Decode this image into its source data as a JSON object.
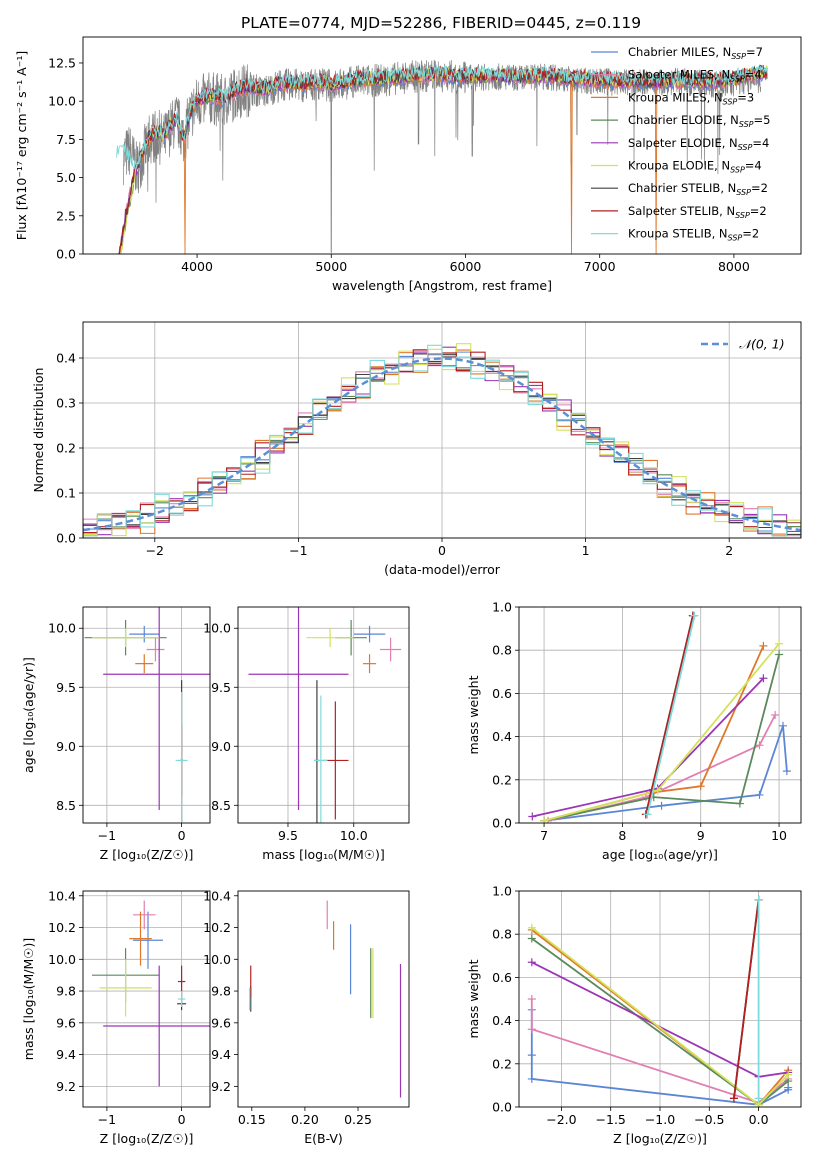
{
  "figure_title": "PLATE=0774, MJD=52286, FIBERID=0445, z=0.119",
  "models": [
    {
      "label": "Chabrier MILES, N",
      "sub": "SSP",
      "nssp": "=7",
      "color": "#5b86d6"
    },
    {
      "label": "Salpeter MILES, N",
      "sub": "SSP",
      "nssp": "=4",
      "color": "#e27fb2"
    },
    {
      "label": "Kroupa MILES, N",
      "sub": "SSP",
      "nssp": "=3",
      "color": "#e0782b"
    },
    {
      "label": "Chabrier ELODIE, N",
      "sub": "SSP",
      "nssp": "=5",
      "color": "#5a8a5a"
    },
    {
      "label": "Salpeter ELODIE, N",
      "sub": "SSP",
      "nssp": "=4",
      "color": "#9b36b4"
    },
    {
      "label": "Kroupa ELODIE, N",
      "sub": "SSP",
      "nssp": "=4",
      "color": "#d3e25a"
    },
    {
      "label": "Chabrier STELIB, N",
      "sub": "SSP",
      "nssp": "=2",
      "color": "#404040"
    },
    {
      "label": "Salpeter STELIB, N",
      "sub": "SSP",
      "nssp": "=2",
      "color": "#b02222"
    },
    {
      "label": "Kroupa STELIB, N",
      "sub": "SSP",
      "nssp": "=2",
      "color": "#7fdbdb"
    }
  ],
  "chart_data": [
    {
      "id": "spectrum",
      "type": "line",
      "xlabel": "wavelength [Angstrom, rest frame]",
      "ylabel": "Flux [fλ10⁻¹⁷ erg cm⁻² s⁻¹ A⁻¹]",
      "xlim": [
        3150,
        8500
      ],
      "ylim": [
        0,
        14.2
      ],
      "xticks": [
        4000,
        5000,
        6000,
        7000,
        8000
      ],
      "yticks": [
        0.0,
        2.5,
        5.0,
        7.5,
        10.0,
        12.5
      ],
      "data_color": "#808080",
      "series": [
        {
          "name": "data",
          "x": [
            3450,
            3500,
            3550,
            3600,
            3650,
            3700,
            3750,
            3800,
            3850,
            3900,
            3950,
            4000,
            4100,
            4200,
            4300,
            4400,
            4500,
            4600,
            4700,
            4800,
            4900,
            5000,
            5200,
            5400,
            5600,
            5800,
            6000,
            6200,
            6400,
            6600,
            6800,
            7000,
            7200,
            7400,
            7600,
            7800,
            8000,
            8200
          ],
          "y": [
            6.3,
            6.8,
            5.5,
            6.5,
            7.6,
            7.8,
            7.4,
            8.2,
            8.8,
            7.6,
            9.1,
            9.9,
            10.2,
            10.0,
            10.6,
            10.8,
            10.6,
            11.0,
            11.1,
            11.0,
            11.2,
            11.0,
            11.3,
            11.4,
            11.6,
            11.7,
            11.5,
            11.6,
            11.5,
            11.6,
            11.4,
            11.3,
            11.2,
            11.2,
            11.3,
            11.1,
            11.2,
            11.4
          ]
        },
        {
          "name": "model",
          "x": [
            3400,
            3450,
            3500,
            3550,
            3600,
            3650,
            3700,
            3750,
            3800,
            3850,
            3900,
            3950,
            4000,
            4100,
            4200,
            4300,
            4400,
            4500,
            4600,
            4700,
            4800,
            4900,
            5000,
            5200,
            5400,
            5600,
            5800,
            6000,
            6200,
            6400,
            6600,
            6800,
            7000,
            7200,
            7400,
            7600,
            7800,
            8000,
            8250
          ],
          "y": [
            6.6,
            6.9,
            6.2,
            5.5,
            6.8,
            7.7,
            8.0,
            7.8,
            8.4,
            8.9,
            7.5,
            9.3,
            10.1,
            10.4,
            10.2,
            10.8,
            11.0,
            10.8,
            11.1,
            11.2,
            11.1,
            11.3,
            11.1,
            11.4,
            11.5,
            11.7,
            11.8,
            11.6,
            11.7,
            11.6,
            11.7,
            11.5,
            11.4,
            11.3,
            11.3,
            11.4,
            11.3,
            11.5,
            11.9
          ]
        }
      ],
      "legend": "upper right"
    },
    {
      "id": "residuals",
      "type": "histogram",
      "xlabel": "(data-model)/error",
      "ylabel": "Normed distribution",
      "xlim": [
        -2.5,
        2.5
      ],
      "ylim": [
        0,
        0.48
      ],
      "xticks": [
        -2,
        -1,
        0,
        1,
        2
      ],
      "yticks": [
        0.0,
        0.1,
        0.2,
        0.3,
        0.4
      ],
      "grid": true,
      "legend": "upper right",
      "reference_curve": {
        "name": "𝒩(0, 1)",
        "color": "#5b8fd6",
        "mu": 0,
        "sigma": 1,
        "dashed": true
      },
      "bin_width": 0.1,
      "bins_from": -2.5,
      "jitter": [
        0.0,
        0.022,
        -0.018,
        0.03,
        -0.025,
        0.012,
        -0.03,
        0.026,
        -0.008,
        0.019,
        -0.022,
        0.034,
        -0.015,
        0.005,
        -0.028,
        0.024,
        -0.01,
        0.016,
        -0.035,
        0.02,
        0.009,
        -0.019,
        0.028,
        -0.012,
        0.015,
        -0.026,
        0.031,
        -0.006,
        0.013,
        -0.021,
        0.027,
        -0.016,
        0.007,
        -0.029,
        0.018,
        -0.011,
        0.023,
        -0.024,
        0.01,
        -0.014,
        0.021,
        -0.02,
        0.014,
        -0.007,
        0.025,
        -0.017,
        0.006,
        -0.027,
        0.017,
        -0.009
      ]
    },
    {
      "id": "age_vs_Z",
      "type": "errorbar",
      "xlabel": "Z [log₁₀(Z/Z☉)]",
      "ylabel": "age  [log₁₀(age/yr)]",
      "xlim": [
        -1.32,
        0.38
      ],
      "ylim": [
        8.35,
        10.18
      ],
      "xticks": [
        -1,
        0
      ],
      "yticks": [
        8.5,
        9.0,
        9.5,
        10.0
      ],
      "grid": true,
      "points": [
        {
          "model": 0,
          "x": -0.5,
          "y": 9.95,
          "xerr": 0.2,
          "yerr": 0.07
        },
        {
          "model": 1,
          "x": -0.35,
          "y": 9.82,
          "xerr": 0.12,
          "yerr": 0.1
        },
        {
          "model": 2,
          "x": -0.5,
          "y": 9.7,
          "xerr": 0.12,
          "yerr": 0.08
        },
        {
          "model": 3,
          "x": -0.75,
          "y": 9.92,
          "xerr": 0.55,
          "yerr": 0.15
        },
        {
          "model": 4,
          "x": -0.3,
          "y": 9.61,
          "xerr": 0.75,
          "yerr": 1.15
        },
        {
          "model": 5,
          "x": -0.75,
          "y": 9.92,
          "xerr": 0.45,
          "yerr": 0.08
        },
        {
          "model": 6,
          "x": 0.0,
          "y": 8.88,
          "xerr": 0.02,
          "yerr": 0.68
        },
        {
          "model": 7,
          "x": 0.0,
          "y": 8.88,
          "xerr": 0.02,
          "yerr": 0.3
        },
        {
          "model": 8,
          "x": 0.0,
          "y": 8.88,
          "xerr": 0.08,
          "yerr": 0.58
        }
      ]
    },
    {
      "id": "age_vs_mass",
      "type": "errorbar",
      "xlabel": "mass [log₁₀(M/M☉)]",
      "ylabel": "",
      "xlim": [
        9.12,
        10.42
      ],
      "ylim": [
        8.35,
        10.18
      ],
      "xticks": [
        9.5,
        10.0
      ],
      "yticks": [
        8.5,
        9.0,
        9.5,
        10.0
      ],
      "grid": true,
      "points": [
        {
          "model": 0,
          "x": 10.12,
          "y": 9.95,
          "xerr": 0.12,
          "yerr": 0.07
        },
        {
          "model": 1,
          "x": 10.28,
          "y": 9.82,
          "xerr": 0.08,
          "yerr": 0.1
        },
        {
          "model": 2,
          "x": 10.12,
          "y": 9.7,
          "xerr": 0.05,
          "yerr": 0.08
        },
        {
          "model": 3,
          "x": 9.98,
          "y": 9.92,
          "xerr": 0.12,
          "yerr": 0.15
        },
        {
          "model": 4,
          "x": 9.58,
          "y": 9.61,
          "xerr": 0.38,
          "yerr": 1.15
        },
        {
          "model": 5,
          "x": 9.82,
          "y": 9.92,
          "xerr": 0.18,
          "yerr": 0.08
        },
        {
          "model": 6,
          "x": 9.72,
          "y": 8.88,
          "xerr": 0.02,
          "yerr": 0.68
        },
        {
          "model": 7,
          "x": 9.86,
          "y": 8.88,
          "xerr": 0.1,
          "yerr": 0.5
        },
        {
          "model": 8,
          "x": 9.75,
          "y": 8.88,
          "xerr": 0.05,
          "yerr": 0.55
        }
      ]
    },
    {
      "id": "weight_vs_age",
      "type": "line",
      "xlabel": "age  [log₁₀(age/yr)]",
      "ylabel": "mass weight",
      "xlim": [
        6.68,
        10.28
      ],
      "ylim": [
        0,
        1.0
      ],
      "xticks": [
        7,
        8,
        9,
        10
      ],
      "yticks": [
        0.0,
        0.2,
        0.4,
        0.6,
        0.8,
        1.0
      ],
      "grid": true,
      "series": [
        {
          "model": 0,
          "x": [
            7.0,
            8.5,
            9.75,
            10.05,
            10.1
          ],
          "y": [
            0.01,
            0.08,
            0.13,
            0.45,
            0.24
          ]
        },
        {
          "model": 1,
          "x": [
            7.05,
            8.3,
            9.75,
            9.95
          ],
          "y": [
            0.01,
            0.12,
            0.36,
            0.5
          ]
        },
        {
          "model": 2,
          "x": [
            7.0,
            8.35,
            9.0,
            9.8
          ],
          "y": [
            0.01,
            0.14,
            0.17,
            0.82
          ]
        },
        {
          "model": 3,
          "x": [
            7.0,
            8.4,
            9.5,
            10.0
          ],
          "y": [
            0.01,
            0.12,
            0.09,
            0.78
          ]
        },
        {
          "model": 4,
          "x": [
            6.85,
            8.45,
            9.8
          ],
          "y": [
            0.03,
            0.16,
            0.67
          ]
        },
        {
          "model": 5,
          "x": [
            7.0,
            8.45,
            10.0
          ],
          "y": [
            0.01,
            0.15,
            0.83
          ]
        },
        {
          "model": 6,
          "x": [
            8.3,
            8.9
          ],
          "y": [
            0.04,
            0.96
          ]
        },
        {
          "model": 7,
          "x": [
            8.3,
            8.9
          ],
          "y": [
            0.04,
            0.96
          ]
        },
        {
          "model": 8,
          "x": [
            8.32,
            8.92
          ],
          "y": [
            0.04,
            0.96
          ]
        }
      ]
    },
    {
      "id": "mass_vs_Z",
      "type": "errorbar",
      "xlabel": "Z [log₁₀(Z/Z☉)]",
      "ylabel": "mass [log₁₀(M/M☉)]",
      "xlim": [
        -1.32,
        0.38
      ],
      "ylim": [
        9.07,
        10.43
      ],
      "xticks": [
        -1,
        0
      ],
      "yticks": [
        9.2,
        9.4,
        9.6,
        9.8,
        10.0,
        10.2,
        10.4
      ],
      "grid": true,
      "points": [
        {
          "model": 0,
          "x": -0.45,
          "y": 10.12,
          "xerr": 0.2,
          "yerr": 0.18
        },
        {
          "model": 1,
          "x": -0.5,
          "y": 10.28,
          "xerr": 0.15,
          "yerr": 0.09
        },
        {
          "model": 2,
          "x": -0.55,
          "y": 10.13,
          "xerr": 0.15,
          "yerr": 0.17
        },
        {
          "model": 3,
          "x": -0.75,
          "y": 9.9,
          "xerr": 0.45,
          "yerr": 0.17
        },
        {
          "model": 4,
          "x": -0.3,
          "y": 9.58,
          "xerr": 0.75,
          "yerr": 0.38
        },
        {
          "model": 5,
          "x": -0.75,
          "y": 9.82,
          "xerr": 0.35,
          "yerr": 0.18
        },
        {
          "model": 6,
          "x": 0.0,
          "y": 9.72,
          "xerr": 0.06,
          "yerr": 0.04
        },
        {
          "model": 7,
          "x": 0.0,
          "y": 9.86,
          "xerr": 0.05,
          "yerr": 0.1
        },
        {
          "model": 8,
          "x": 0.0,
          "y": 9.75,
          "xerr": 0.05,
          "yerr": 0.05
        }
      ]
    },
    {
      "id": "mass_vs_ebv",
      "type": "errorbar",
      "xlabel": "E(B-V)",
      "ylabel": "",
      "xlim": [
        0.137,
        0.298
      ],
      "ylim": [
        9.07,
        10.43
      ],
      "xticks": [
        0.15,
        0.2,
        0.25
      ],
      "yticks": [
        9.2,
        9.4,
        9.6,
        9.8,
        10.0,
        10.2,
        10.4
      ],
      "grid": false,
      "points": [
        {
          "model": 0,
          "x": 0.243,
          "y": 10.0,
          "xerr": 0,
          "yerr": 0.22
        },
        {
          "model": 1,
          "x": 0.221,
          "y": 10.28,
          "xerr": 0,
          "yerr": 0.09
        },
        {
          "model": 2,
          "x": 0.227,
          "y": 10.15,
          "xerr": 0,
          "yerr": 0.09
        },
        {
          "model": 3,
          "x": 0.262,
          "y": 9.85,
          "xerr": 0,
          "yerr": 0.22
        },
        {
          "model": 4,
          "x": 0.29,
          "y": 9.55,
          "xerr": 0,
          "yerr": 0.42
        },
        {
          "model": 5,
          "x": 0.264,
          "y": 9.85,
          "xerr": 0,
          "yerr": 0.22
        },
        {
          "model": 6,
          "x": 0.149,
          "y": 9.75,
          "xerr": 0,
          "yerr": 0.08
        },
        {
          "model": 7,
          "x": 0.149,
          "y": 9.86,
          "xerr": 0,
          "yerr": 0.1
        },
        {
          "model": 8,
          "x": 0.148,
          "y": 9.75,
          "xerr": 0,
          "yerr": 0.07
        }
      ]
    },
    {
      "id": "weight_vs_Z",
      "type": "line",
      "xlabel": "Z [log₁₀(Z/Z☉)]",
      "ylabel": "mass weight",
      "xlim": [
        -2.43,
        0.43
      ],
      "ylim": [
        0,
        1.0
      ],
      "xticks": [
        -2.0,
        -1.5,
        -1.0,
        -0.5,
        0.0
      ],
      "yticks": [
        0.0,
        0.2,
        0.4,
        0.6,
        0.8,
        1.0
      ],
      "grid": true,
      "series": [
        {
          "model": 0,
          "x": [
            -2.3,
            -2.3,
            -2.3,
            0.0,
            0.3,
            0.3
          ],
          "y": [
            0.45,
            0.24,
            0.13,
            0.01,
            0.08,
            0.09
          ]
        },
        {
          "model": 1,
          "x": [
            -2.3,
            -2.3,
            0.0,
            0.3
          ],
          "y": [
            0.5,
            0.36,
            0.02,
            0.13
          ]
        },
        {
          "model": 2,
          "x": [
            -2.3,
            0.0,
            0.3
          ],
          "y": [
            0.82,
            0.01,
            0.17
          ]
        },
        {
          "model": 3,
          "x": [
            -2.3,
            0.0,
            0.3
          ],
          "y": [
            0.78,
            0.01,
            0.12
          ]
        },
        {
          "model": 4,
          "x": [
            -2.3,
            0.0,
            0.3
          ],
          "y": [
            0.67,
            0.14,
            0.16
          ]
        },
        {
          "model": 5,
          "x": [
            -2.3,
            0.0,
            0.3
          ],
          "y": [
            0.83,
            0.01,
            0.15
          ]
        },
        {
          "model": 6,
          "x": [
            -0.25,
            0.0
          ],
          "y": [
            0.04,
            0.96
          ]
        },
        {
          "model": 7,
          "x": [
            -0.25,
            0.0
          ],
          "y": [
            0.04,
            0.96
          ]
        },
        {
          "model": 8,
          "x": [
            0.0,
            0.0
          ],
          "y": [
            0.04,
            0.96
          ]
        }
      ]
    }
  ]
}
